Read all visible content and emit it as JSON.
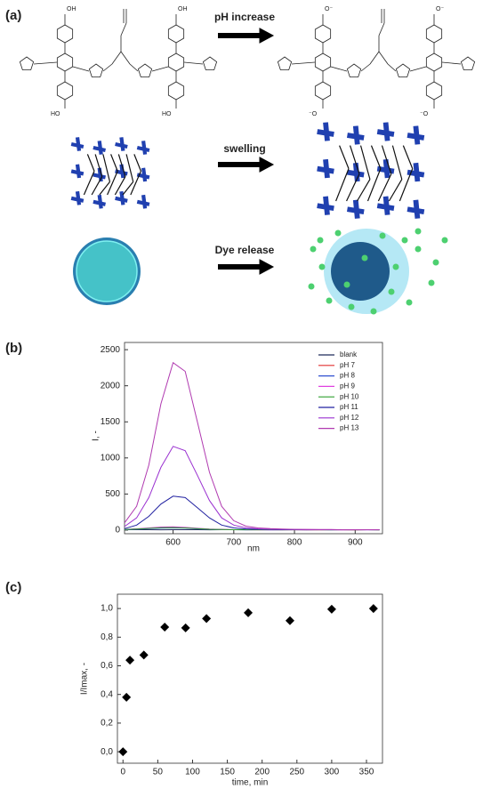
{
  "panel_labels": [
    "(a)",
    "(b)",
    "(c)"
  ],
  "scheme": {
    "steps": [
      "pH increase",
      "swelling",
      "Dye release"
    ],
    "atom_labels": {
      "acid": [
        "OH",
        "OH",
        "HO",
        "HO"
      ],
      "base": [
        "O⁻",
        "O⁻",
        "⁻O",
        "⁻O"
      ]
    }
  },
  "chart_data": [
    {
      "type": "line",
      "x_label": "nm",
      "y_label": "I, -",
      "x": [
        520,
        540,
        560,
        580,
        600,
        620,
        640,
        660,
        680,
        700,
        720,
        740,
        760,
        780,
        800,
        820,
        840,
        860,
        880,
        900,
        920,
        940
      ],
      "xlim": [
        520,
        945
      ],
      "ylim": [
        -50,
        2600
      ],
      "xticks": [
        600,
        700,
        800,
        900
      ],
      "yticks": [
        0,
        500,
        1000,
        1500,
        2000,
        2500
      ],
      "legend": "upper right",
      "series": [
        {
          "name": "blank",
          "color": "#1f2a5a",
          "values": [
            5,
            6,
            5,
            4,
            6,
            5,
            5,
            4,
            5,
            5,
            4,
            5,
            4,
            5,
            5,
            4,
            5,
            4,
            5,
            4,
            5,
            4
          ]
        },
        {
          "name": "pH 7",
          "color": "#e03030",
          "values": [
            8,
            15,
            25,
            35,
            38,
            33,
            22,
            12,
            8,
            6,
            5,
            4,
            5,
            4,
            5,
            4,
            4,
            5,
            4,
            4,
            5,
            4
          ]
        },
        {
          "name": "pH 8",
          "color": "#3050d0",
          "values": [
            6,
            12,
            20,
            28,
            30,
            26,
            18,
            10,
            7,
            5,
            4,
            5,
            4,
            4,
            5,
            4,
            5,
            4,
            4,
            5,
            4,
            4
          ]
        },
        {
          "name": "pH 9",
          "color": "#e040e0",
          "values": [
            10,
            18,
            30,
            42,
            45,
            38,
            25,
            14,
            9,
            6,
            5,
            5,
            4,
            5,
            4,
            5,
            4,
            5,
            4,
            4,
            4,
            5
          ]
        },
        {
          "name": "pH 10",
          "color": "#30a030",
          "values": [
            8,
            14,
            24,
            32,
            35,
            30,
            20,
            12,
            8,
            6,
            5,
            4,
            5,
            4,
            4,
            5,
            4,
            4,
            5,
            4,
            5,
            4
          ]
        },
        {
          "name": "pH 11",
          "color": "#2020a0",
          "values": [
            20,
            70,
            190,
            360,
            470,
            450,
            310,
            170,
            70,
            30,
            15,
            10,
            8,
            6,
            5,
            5,
            5,
            5,
            5,
            5,
            5,
            5
          ]
        },
        {
          "name": "pH 12",
          "color": "#9a30d0",
          "values": [
            50,
            170,
            450,
            870,
            1160,
            1100,
            760,
            410,
            170,
            70,
            30,
            18,
            12,
            10,
            8,
            6,
            5,
            5,
            5,
            5,
            5,
            5
          ]
        },
        {
          "name": "pH 13",
          "color": "#b03ab0",
          "values": [
            100,
            330,
            900,
            1750,
            2320,
            2200,
            1500,
            800,
            330,
            130,
            55,
            30,
            20,
            15,
            10,
            10,
            8,
            8,
            5,
            5,
            5,
            5
          ]
        }
      ]
    },
    {
      "type": "scatter",
      "x_label": "time, min",
      "y_label": "I/Imax, -",
      "color": "#000000",
      "x": [
        0,
        5,
        10,
        30,
        60,
        90,
        120,
        180,
        240,
        300,
        360
      ],
      "values": [
        0.0,
        0.38,
        0.64,
        0.675,
        0.87,
        0.865,
        0.93,
        0.97,
        0.915,
        0.995,
        1.0
      ],
      "xlim": [
        -8,
        373
      ],
      "ylim": [
        -0.08,
        1.1
      ],
      "xticks": [
        0,
        50,
        100,
        150,
        200,
        250,
        300,
        350
      ],
      "yticks": [
        {
          "value": 0,
          "label": "0,0"
        },
        {
          "value": 0.2,
          "label": "0,2"
        },
        {
          "value": 0.4,
          "label": "0,4"
        },
        {
          "value": 0.6,
          "label": "0,6"
        },
        {
          "value": 0.8,
          "label": "0,8"
        },
        {
          "value": 1.0,
          "label": "1,0"
        }
      ]
    }
  ]
}
